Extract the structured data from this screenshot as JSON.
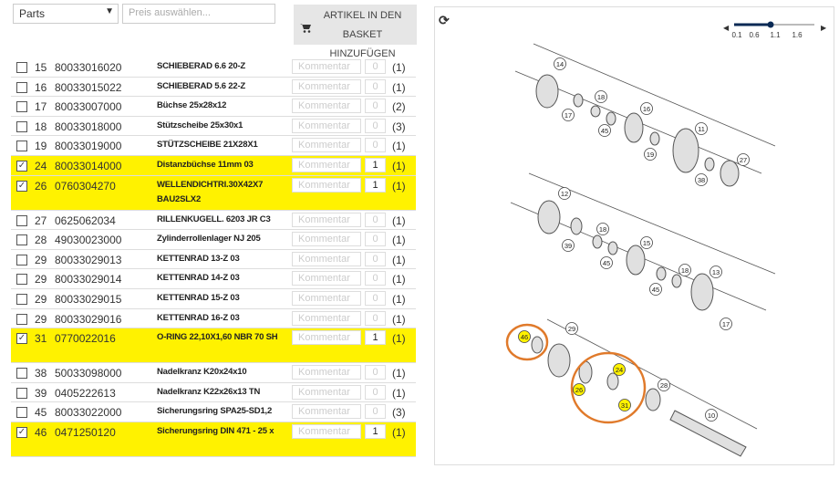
{
  "controls": {
    "category": "Parts",
    "price_placeholder": "Preis auswählen...",
    "add_button": "ARTIKEL IN DEN BASKET HINZUFÜGEN"
  },
  "parts": {
    "comment_placeholder": "Kommentar",
    "rows": [
      {
        "position": "15",
        "number": "80033016020",
        "description": "SCHIEBERAD 6.6 20-Z",
        "quantity": "0",
        "count": "(1)",
        "selected": false
      },
      {
        "position": "16",
        "number": "80033015022",
        "description": "SCHIEBERAD 5.6 22-Z",
        "quantity": "0",
        "count": "(1)",
        "selected": false
      },
      {
        "position": "17",
        "number": "80033007000",
        "description": "Büchse 25x28x12",
        "quantity": "0",
        "count": "(2)",
        "selected": false
      },
      {
        "position": "18",
        "number": "80033018000",
        "description": "Stützscheibe 25x30x1",
        "quantity": "0",
        "count": "(3)",
        "selected": false
      },
      {
        "position": "19",
        "number": "80033019000",
        "description": "STÜTZSCHEIBE 21X28X1",
        "quantity": "0",
        "count": "(1)",
        "selected": false
      },
      {
        "position": "24",
        "number": "80033014000",
        "description": "Distanzbüchse 11mm 03",
        "quantity": "1",
        "count": "(1)",
        "selected": true
      },
      {
        "position": "26",
        "number": "0760304270",
        "description": "WELLENDICHTRI.30X42X7 BAU2SLX2",
        "quantity": "1",
        "count": "(1)",
        "selected": true
      },
      {
        "position": "27",
        "number": "0625062034",
        "description": "RILLENKUGELL. 6203 JR C3",
        "quantity": "0",
        "count": "(1)",
        "selected": false
      },
      {
        "position": "28",
        "number": "49030023000",
        "description": "Zylinderrollenlager NJ 205",
        "quantity": "0",
        "count": "(1)",
        "selected": false
      },
      {
        "position": "29",
        "number": "80033029013",
        "description": "KETTENRAD 13-Z 03",
        "quantity": "0",
        "count": "(1)",
        "selected": false
      },
      {
        "position": "29",
        "number": "80033029014",
        "description": "KETTENRAD 14-Z 03",
        "quantity": "0",
        "count": "(1)",
        "selected": false
      },
      {
        "position": "29",
        "number": "80033029015",
        "description": "KETTENRAD 15-Z 03",
        "quantity": "0",
        "count": "(1)",
        "selected": false
      },
      {
        "position": "29",
        "number": "80033029016",
        "description": "KETTENRAD 16-Z 03",
        "quantity": "0",
        "count": "(1)",
        "selected": false
      },
      {
        "position": "31",
        "number": "0770022016",
        "description": "O-RING 22,10X1,60 NBR 70 SH",
        "quantity": "1",
        "count": "(1)",
        "selected": true
      },
      {
        "position": "38",
        "number": "50033098000",
        "description": "Nadelkranz K20x24x10",
        "quantity": "0",
        "count": "(1)",
        "selected": false
      },
      {
        "position": "39",
        "number": "0405222613",
        "description": "Nadelkranz K22x26x13 TN",
        "quantity": "0",
        "count": "(1)",
        "selected": false
      },
      {
        "position": "45",
        "number": "80033022000",
        "description": "Sicherungsring SPA25-SD1,2",
        "quantity": "0",
        "count": "(3)",
        "selected": false
      },
      {
        "position": "46",
        "number": "0471250120",
        "description": "Sicherungsring DIN 471 - 25 x",
        "quantity": "1",
        "count": "(1)",
        "selected": true
      }
    ]
  },
  "zoom": {
    "labels": [
      "0.1",
      "0.6",
      "1.1",
      "1.6"
    ]
  },
  "diagram": {
    "callouts": [
      {
        "label": "14",
        "highlighted": false
      },
      {
        "label": "17",
        "highlighted": false
      },
      {
        "label": "18",
        "highlighted": false
      },
      {
        "label": "45",
        "highlighted": false
      },
      {
        "label": "16",
        "highlighted": false
      },
      {
        "label": "19",
        "highlighted": false
      },
      {
        "label": "11",
        "highlighted": false
      },
      {
        "label": "38",
        "highlighted": false
      },
      {
        "label": "27",
        "highlighted": false
      },
      {
        "label": "12",
        "highlighted": false
      },
      {
        "label": "39",
        "highlighted": false
      },
      {
        "label": "18",
        "highlighted": false
      },
      {
        "label": "45",
        "highlighted": false
      },
      {
        "label": "15",
        "highlighted": false
      },
      {
        "label": "45",
        "highlighted": false
      },
      {
        "label": "18",
        "highlighted": false
      },
      {
        "label": "13",
        "highlighted": false
      },
      {
        "label": "17",
        "highlighted": false
      },
      {
        "label": "46",
        "highlighted": true
      },
      {
        "label": "29",
        "highlighted": false
      },
      {
        "label": "24",
        "highlighted": true
      },
      {
        "label": "26",
        "highlighted": true
      },
      {
        "label": "31",
        "highlighted": true
      },
      {
        "label": "28",
        "highlighted": false
      },
      {
        "label": "10",
        "highlighted": false
      }
    ]
  }
}
